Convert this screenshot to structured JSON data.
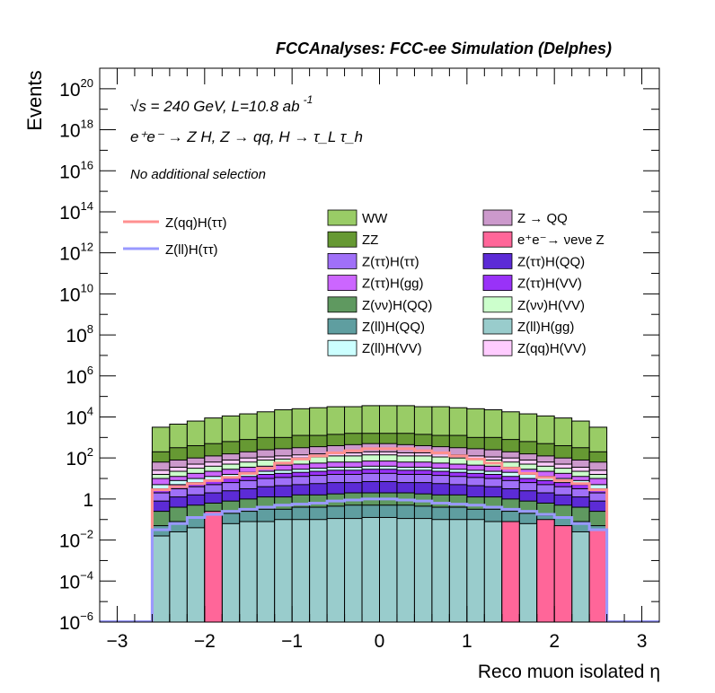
{
  "chart_data": {
    "type": "histogram",
    "title": "FCCAnalyses: FCC-ee Simulation (Delphes)",
    "xlabel": "Reco muon isolated η",
    "ylabel": "Events",
    "yscale": "log",
    "xlim": [
      -3.2,
      3.2
    ],
    "ylim": [
      1e-06,
      1e+21
    ],
    "x_ticks": [
      -3,
      -2,
      -1,
      0,
      1,
      2,
      3
    ],
    "x_tick_labels": [
      "−3",
      "−2",
      "−1",
      "0",
      "1",
      "2",
      "3"
    ],
    "y_ticks": [
      {
        "base": "10",
        "exp": "20",
        "value": 1e+20
      },
      {
        "base": "10",
        "exp": "18",
        "value": 1e+18
      },
      {
        "base": "10",
        "exp": "16",
        "value": 1e+16
      },
      {
        "base": "10",
        "exp": "14",
        "value": 100000000000000.0
      },
      {
        "base": "10",
        "exp": "12",
        "value": 1000000000000.0
      },
      {
        "base": "10",
        "exp": "10",
        "value": 10000000000.0
      },
      {
        "base": "10",
        "exp": "8",
        "value": 100000000.0
      },
      {
        "base": "10",
        "exp": "6",
        "value": 1000000.0
      },
      {
        "base": "10",
        "exp": "4",
        "value": 10000.0
      },
      {
        "base": "10",
        "exp": "2",
        "value": 100.0
      },
      {
        "base": "1",
        "exp": "",
        "value": 1
      },
      {
        "base": "10",
        "exp": "−2",
        "value": 0.01
      },
      {
        "base": "10",
        "exp": "−4",
        "value": 0.0001
      },
      {
        "base": "10",
        "exp": "−6",
        "value": 1e-06
      }
    ],
    "annotations": {
      "energy": "√s = 240 GeV, L=10.8 ab",
      "energy_sup": "-1",
      "process": "e⁺e⁻ → Z H, Z → qq, H → τ_L τ_h",
      "selection": "No additional selection"
    },
    "bin_edges": [
      -2.6,
      -2.4,
      -2.2,
      -2.0,
      -1.8,
      -1.6,
      -1.4,
      -1.2,
      -1.0,
      -0.8,
      -0.6,
      -0.4,
      -0.2,
      0.0,
      0.2,
      0.4,
      0.6,
      0.8,
      1.0,
      1.2,
      1.4,
      1.6,
      1.8,
      2.0,
      2.2,
      2.4,
      2.6
    ],
    "stack_log_tops": [
      {
        "name": "Z(ll)H(gg)",
        "color": "#99cccc",
        "values": [
          -1.8,
          -1.6,
          -1.4,
          -1.3,
          -1.2,
          -1.1,
          -1.1,
          -1.0,
          -1.0,
          -1.0,
          -0.95,
          -0.95,
          -0.9,
          -0.9,
          -0.95,
          -0.95,
          -1.0,
          -1.0,
          -1.0,
          -1.1,
          -1.1,
          -1.2,
          -1.3,
          -1.4,
          -1.6,
          -1.8
        ]
      },
      {
        "name": "Z(ll)H(QQ)",
        "color": "#5f9ea0",
        "values": [
          -1.3,
          -1.1,
          -0.9,
          -0.8,
          -0.7,
          -0.6,
          -0.5,
          -0.5,
          -0.4,
          -0.4,
          -0.35,
          -0.3,
          -0.3,
          -0.3,
          -0.3,
          -0.35,
          -0.4,
          -0.4,
          -0.5,
          -0.5,
          -0.6,
          -0.7,
          -0.8,
          -0.9,
          -1.1,
          -1.3
        ]
      },
      {
        "name": "Z(νν)H(QQ)",
        "color": "#5f9960",
        "values": [
          -0.6,
          -0.4,
          -0.3,
          -0.2,
          -0.1,
          0.0,
          0.1,
          0.1,
          0.2,
          0.2,
          0.25,
          0.3,
          0.3,
          0.3,
          0.3,
          0.25,
          0.2,
          0.2,
          0.1,
          0.1,
          0.0,
          -0.1,
          -0.2,
          -0.3,
          -0.4,
          -0.6
        ]
      },
      {
        "name": "Z(ττ)H(QQ)",
        "color": "#5c2bd6",
        "values": [
          -0.1,
          0.1,
          0.2,
          0.3,
          0.4,
          0.5,
          0.6,
          0.65,
          0.7,
          0.75,
          0.8,
          0.8,
          0.85,
          0.85,
          0.8,
          0.8,
          0.75,
          0.7,
          0.65,
          0.6,
          0.5,
          0.4,
          0.3,
          0.2,
          0.1,
          -0.1
        ]
      },
      {
        "name": "Z(ττ)H(ττ)",
        "color": "#a070f8",
        "values": [
          0.3,
          0.5,
          0.6,
          0.7,
          0.8,
          0.9,
          1.0,
          1.05,
          1.1,
          1.15,
          1.2,
          1.2,
          1.25,
          1.25,
          1.2,
          1.2,
          1.15,
          1.1,
          1.05,
          1.0,
          0.9,
          0.8,
          0.7,
          0.6,
          0.5,
          0.3
        ]
      },
      {
        "name": "Z(ττ)H(VV)",
        "color": "#9932f8",
        "values": [
          0.5,
          0.7,
          0.8,
          0.9,
          1.0,
          1.1,
          1.2,
          1.25,
          1.3,
          1.35,
          1.4,
          1.4,
          1.45,
          1.45,
          1.4,
          1.4,
          1.35,
          1.3,
          1.25,
          1.2,
          1.1,
          1.0,
          0.9,
          0.8,
          0.7,
          0.5
        ]
      },
      {
        "name": "Z(ll)H(VV)",
        "color": "#ccffff",
        "values": [
          0.7,
          0.9,
          1.0,
          1.1,
          1.2,
          1.3,
          1.35,
          1.4,
          1.45,
          1.5,
          1.55,
          1.55,
          1.6,
          1.6,
          1.55,
          1.55,
          1.5,
          1.45,
          1.4,
          1.35,
          1.3,
          1.2,
          1.1,
          1.0,
          0.9,
          0.7
        ]
      },
      {
        "name": "Z(ττ)H(gg)",
        "color": "#cc66ff",
        "values": [
          1.0,
          1.1,
          1.25,
          1.35,
          1.45,
          1.55,
          1.6,
          1.65,
          1.7,
          1.75,
          1.8,
          1.8,
          1.85,
          1.85,
          1.8,
          1.8,
          1.75,
          1.7,
          1.65,
          1.6,
          1.55,
          1.45,
          1.35,
          1.25,
          1.1,
          1.0
        ]
      },
      {
        "name": "Z(νν)H(VV)",
        "color": "#ccffcc",
        "values": [
          1.2,
          1.35,
          1.5,
          1.6,
          1.7,
          1.8,
          1.9,
          1.95,
          2.0,
          2.05,
          2.1,
          2.1,
          2.15,
          2.15,
          2.1,
          2.1,
          2.05,
          2.0,
          1.95,
          1.9,
          1.8,
          1.7,
          1.6,
          1.5,
          1.35,
          1.2
        ]
      },
      {
        "name": "Z(qq)H(VV)",
        "color": "#ffccff",
        "values": [
          1.4,
          1.55,
          1.7,
          1.8,
          1.9,
          2.0,
          2.05,
          2.1,
          2.15,
          2.2,
          2.25,
          2.25,
          2.3,
          2.3,
          2.25,
          2.25,
          2.2,
          2.15,
          2.1,
          2.05,
          2.0,
          1.9,
          1.8,
          1.7,
          1.55,
          1.4
        ]
      },
      {
        "name": "Z → QQ",
        "color": "#cc99cc",
        "values": [
          1.8,
          1.9,
          2.0,
          2.1,
          2.2,
          2.3,
          2.4,
          2.45,
          2.5,
          2.55,
          2.6,
          2.65,
          2.7,
          2.7,
          2.65,
          2.6,
          2.55,
          2.5,
          2.45,
          2.4,
          2.3,
          2.2,
          2.1,
          2.0,
          1.9,
          1.8
        ]
      },
      {
        "name": "ZZ",
        "color": "#669933",
        "values": [
          2.3,
          2.5,
          2.6,
          2.7,
          2.8,
          2.9,
          3.0,
          3.0,
          3.1,
          3.1,
          3.15,
          3.2,
          3.2,
          3.2,
          3.2,
          3.15,
          3.1,
          3.1,
          3.0,
          3.0,
          2.9,
          2.8,
          2.7,
          2.6,
          2.5,
          2.3
        ]
      },
      {
        "name": "WW",
        "color": "#99cc66",
        "values": [
          3.5,
          3.65,
          3.8,
          3.95,
          4.05,
          4.15,
          4.25,
          4.35,
          4.4,
          4.45,
          4.5,
          4.5,
          4.55,
          4.55,
          4.55,
          4.5,
          4.5,
          4.45,
          4.4,
          4.35,
          4.25,
          4.15,
          4.05,
          3.95,
          3.8,
          3.5
        ]
      }
    ],
    "ee_nunu_z_bars": [
      {
        "bin": 3,
        "log_top": -0.6
      },
      {
        "bin": 20,
        "log_top": -1.1
      },
      {
        "bin": 22,
        "log_top": -1.0
      },
      {
        "bin": 23,
        "log_top": -1.3
      },
      {
        "bin": 25,
        "log_top": -1.5
      }
    ],
    "overlay_lines": [
      {
        "name": "Z(qq)H(ττ)",
        "color": "#ff9090",
        "log_values": [
          0.45,
          0.6,
          0.75,
          0.9,
          1.05,
          1.25,
          1.5,
          1.75,
          1.95,
          2.1,
          2.25,
          2.35,
          2.45,
          2.45,
          2.45,
          2.35,
          2.25,
          2.1,
          1.95,
          1.75,
          1.5,
          1.25,
          1.05,
          0.9,
          0.75,
          0.45
        ]
      },
      {
        "name": "Z(ll)H(ττ)",
        "color": "#9999ff",
        "log_values": [
          -1.5,
          -1.2,
          -0.9,
          -0.75,
          -0.6,
          -0.5,
          -0.4,
          -0.3,
          -0.25,
          -0.2,
          -0.1,
          -0.05,
          0.0,
          0.0,
          -0.05,
          -0.1,
          -0.2,
          -0.25,
          -0.3,
          -0.4,
          -0.5,
          -0.6,
          -0.75,
          -0.9,
          -1.2,
          -1.5
        ]
      }
    ],
    "legend_left": [
      {
        "label": "Z(qq)H(ττ)",
        "color": "#ff9090"
      },
      {
        "label": "Z(ll)H(ττ)",
        "color": "#9999ff"
      }
    ],
    "legend_right": [
      {
        "label": "WW",
        "color": "#99cc66"
      },
      {
        "label": "Z → QQ",
        "color": "#cc99cc"
      },
      {
        "label": "ZZ",
        "color": "#669933"
      },
      {
        "label": "e⁺e⁻→ νeνe Z",
        "color": "#ff6699"
      },
      {
        "label": "Z(ττ)H(ττ)",
        "color": "#a070f8"
      },
      {
        "label": "Z(ττ)H(QQ)",
        "color": "#5c2bd6"
      },
      {
        "label": "Z(ττ)H(gg)",
        "color": "#cc66ff"
      },
      {
        "label": "Z(ττ)H(VV)",
        "color": "#9932f8"
      },
      {
        "label": "Z(νν)H(QQ)",
        "color": "#5f9960"
      },
      {
        "label": "Z(νν)H(VV)",
        "color": "#ccffcc"
      },
      {
        "label": "Z(ll)H(QQ)",
        "color": "#5f9ea0"
      },
      {
        "label": "Z(ll)H(gg)",
        "color": "#99cccc"
      },
      {
        "label": "Z(ll)H(VV)",
        "color": "#ccffff"
      },
      {
        "label": "Z(qq)H(VV)",
        "color": "#ffccff"
      }
    ]
  }
}
